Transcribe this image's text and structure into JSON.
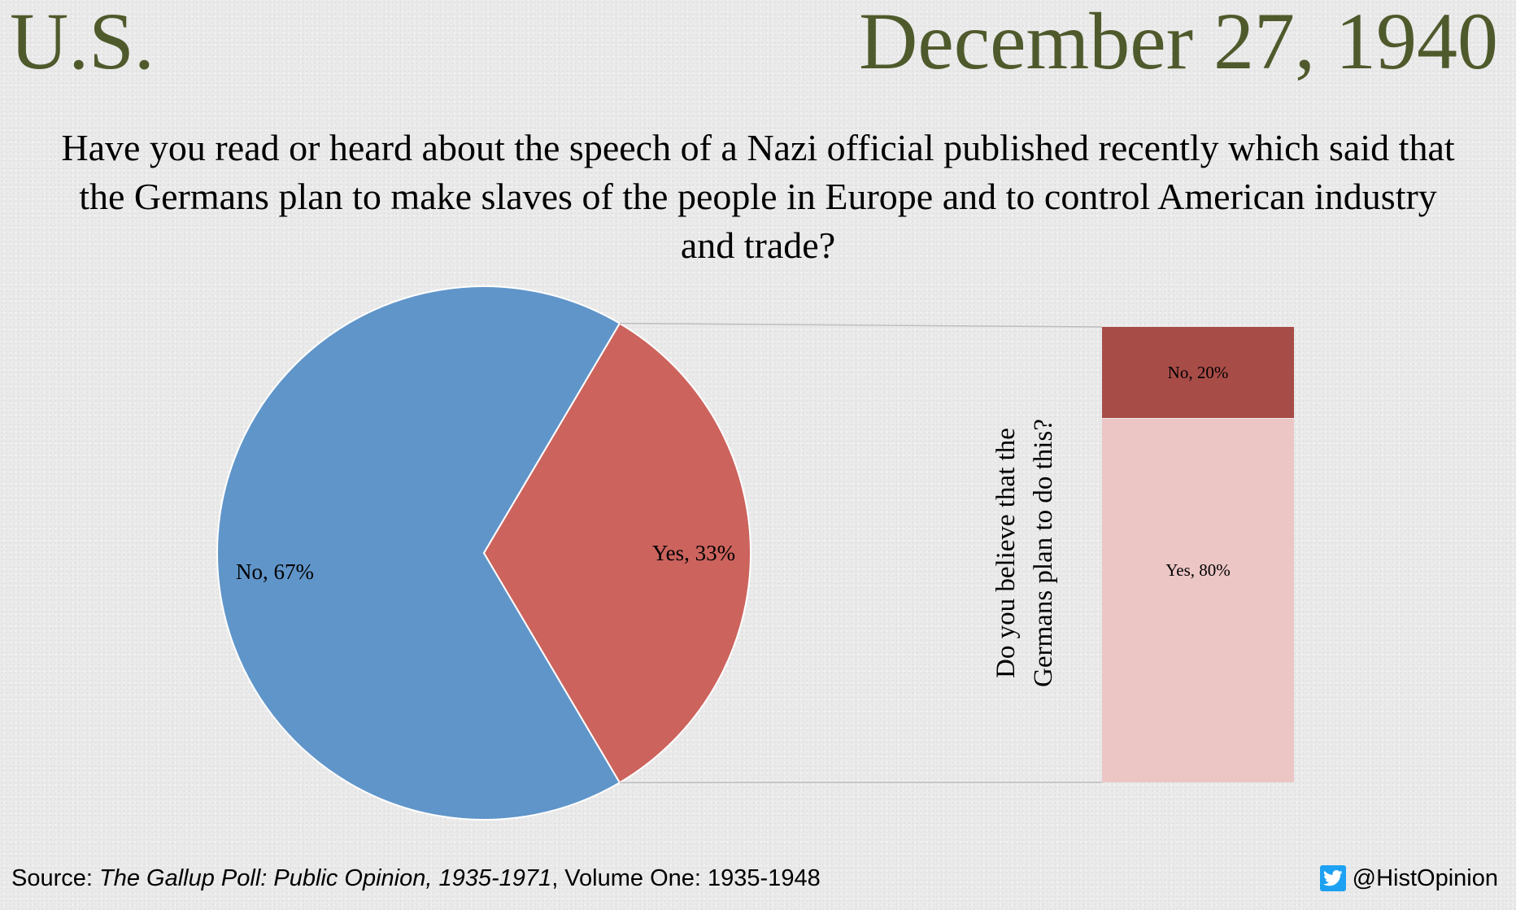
{
  "header": {
    "country": "U.S.",
    "date": "December 27, 1940",
    "question": "Have you read or heard about the speech of a Nazi official published recently which said that the Germans plan to make slaves of the people in Europe and to control American industry and trade?"
  },
  "footer": {
    "source_prefix": "Source: ",
    "source_title": "The Gallup Poll: Public Opinion, 1935-1971",
    "source_suffix": ", Volume One: 1935-1948",
    "handle": "@HistOpinion"
  },
  "chart_data": [
    {
      "type": "pie",
      "slices": [
        {
          "label": "No",
          "value": 67,
          "display": "No, 67%",
          "color": "#6095c9"
        },
        {
          "label": "Yes",
          "value": 33,
          "display": "Yes, 33%",
          "color": "#cc635d"
        }
      ]
    },
    {
      "type": "bar",
      "stacked": true,
      "title_lines": [
        "Do you believe that the",
        "Germans plan to do this?"
      ],
      "segments": [
        {
          "label": "Yes",
          "value": 80,
          "display": "Yes, 80%",
          "color": "#ecc5c5"
        },
        {
          "label": "No",
          "value": 20,
          "display": "No, 20%",
          "color": "#a84c48"
        }
      ]
    }
  ]
}
